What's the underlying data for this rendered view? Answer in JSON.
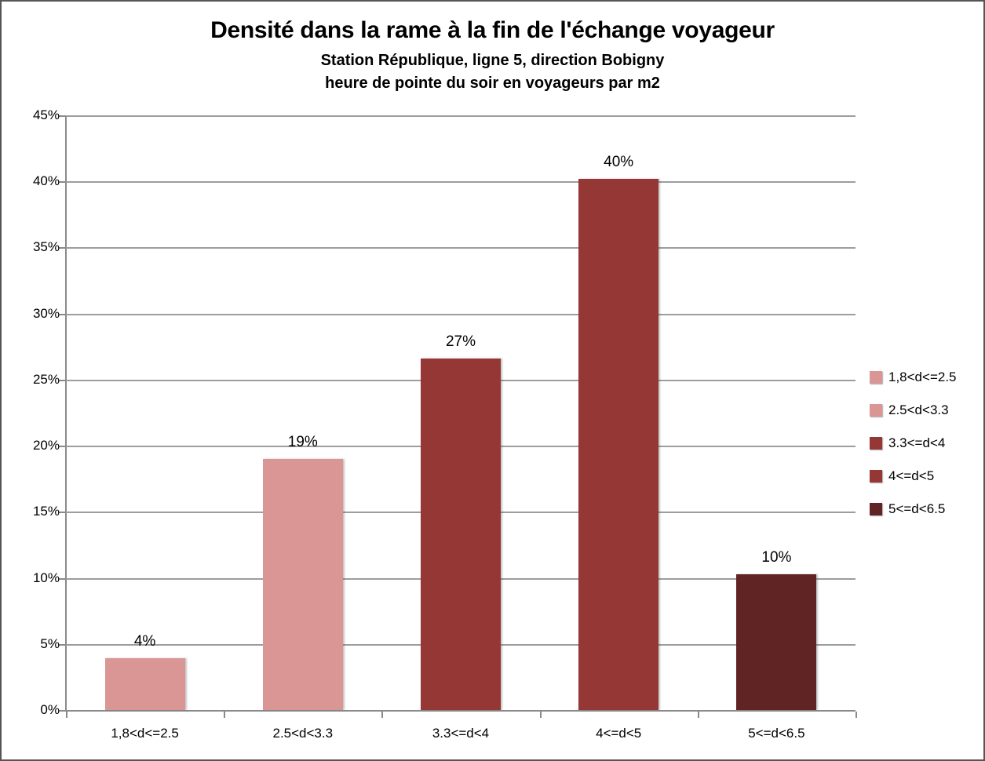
{
  "window": {
    "background": "#ffffff",
    "border_color": "#565656"
  },
  "header": {
    "title": "Densité dans la rame à la fin de l'échange voyageur",
    "subtitle_line1": "Station République, ligne 5, direction Bobigny",
    "subtitle_line2": "heure de pointe du soir en voyageurs par m2"
  },
  "chart_data": {
    "type": "bar",
    "title": "Densité dans la rame à la fin de l'échange voyageur",
    "subtitle": [
      "Station République, ligne 5, direction Bobigny",
      "heure de pointe du soir en voyageurs par m2"
    ],
    "categories": [
      "1,8<d<=2.5",
      "2.5<d<3.3",
      "3.3<=d<4",
      "4<=d<5",
      "5<=d<6.5"
    ],
    "values": [
      3.9,
      19.0,
      26.6,
      40.2,
      10.3
    ],
    "data_labels": [
      "4%",
      "19%",
      "27%",
      "40%",
      "10%"
    ],
    "bar_colors": [
      "#D99694",
      "#D99694",
      "#953734",
      "#953734",
      "#5F2423"
    ],
    "legend_entries": [
      {
        "label": "1,8<d<=2.5",
        "color": "#D99694"
      },
      {
        "label": "2.5<d<3.3",
        "color": "#D99694"
      },
      {
        "label": "3.3<=d<4",
        "color": "#953734"
      },
      {
        "label": "4<=d<5",
        "color": "#953734"
      },
      {
        "label": "5<=d<6.5",
        "color": "#5F2423"
      }
    ],
    "xlabel": "",
    "ylabel": "",
    "ylim": [
      0,
      45
    ],
    "y_step": 5,
    "y_tick_labels": [
      "0%",
      "5%",
      "10%",
      "15%",
      "20%",
      "25%",
      "30%",
      "35%",
      "40%",
      "45%"
    ],
    "grid": true,
    "legend_position": "right",
    "gridline_color": "#9d9d9d",
    "axis_color": "#8a8a8a",
    "text_color": "#000000"
  }
}
